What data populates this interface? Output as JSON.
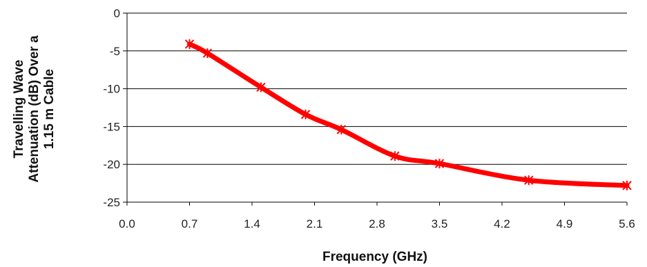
{
  "chart_data": {
    "type": "line",
    "xlabel": "Frequency (GHz)",
    "ylabel": [
      "Travelling Wave",
      "Attenuation (dB) Over a",
      "1.15 m Cable"
    ],
    "xlim": [
      0.0,
      5.6
    ],
    "ylim": [
      -25,
      0
    ],
    "xticks": [
      "0.0",
      "0.7",
      "1.4",
      "2.1",
      "2.8",
      "3.5",
      "4.2",
      "4.9",
      "5.6"
    ],
    "yticks": [
      "0",
      "-5",
      "-10",
      "-15",
      "-20",
      "-25"
    ],
    "grid": "horizontal",
    "series": [
      {
        "color": "#ff0000",
        "marker": "asterisk",
        "x": [
          0.7,
          0.9,
          1.5,
          2.0,
          2.4,
          3.0,
          3.5,
          4.5,
          5.6
        ],
        "y": [
          -4.1,
          -5.3,
          -9.8,
          -13.4,
          -15.4,
          -18.9,
          -19.9,
          -22.1,
          -22.8
        ]
      }
    ]
  }
}
